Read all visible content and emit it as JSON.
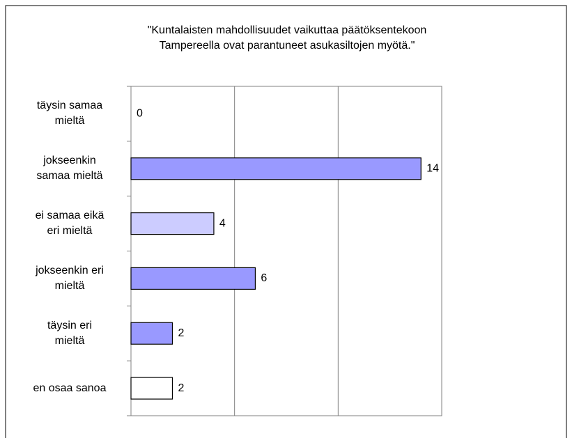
{
  "chart_data": {
    "type": "hbar",
    "title": "\"Kuntalaisten mahdollisuudet vaikuttaa päätöksentekoon\nTampereella ovat parantuneet asukasiltojen myötä.\"",
    "categories": [
      "täysin samaa\nmieltä",
      "jokseenkin\nsamaa mieltä",
      "ei samaa eikä\neri mieltä",
      "jokseenkin eri\nmieltä",
      "täysin eri\nmieltä",
      "en osaa sanoa"
    ],
    "values": [
      0,
      14,
      4,
      6,
      2,
      2
    ],
    "colors": [
      "#9999ff",
      "#9999ff",
      "#ccccff",
      "#9999ff",
      "#9999ff",
      "#ffffff"
    ],
    "xlim": [
      0,
      15
    ],
    "xticks": [
      0,
      5,
      10,
      15
    ],
    "show_tick_labels": false,
    "grid": true
  }
}
